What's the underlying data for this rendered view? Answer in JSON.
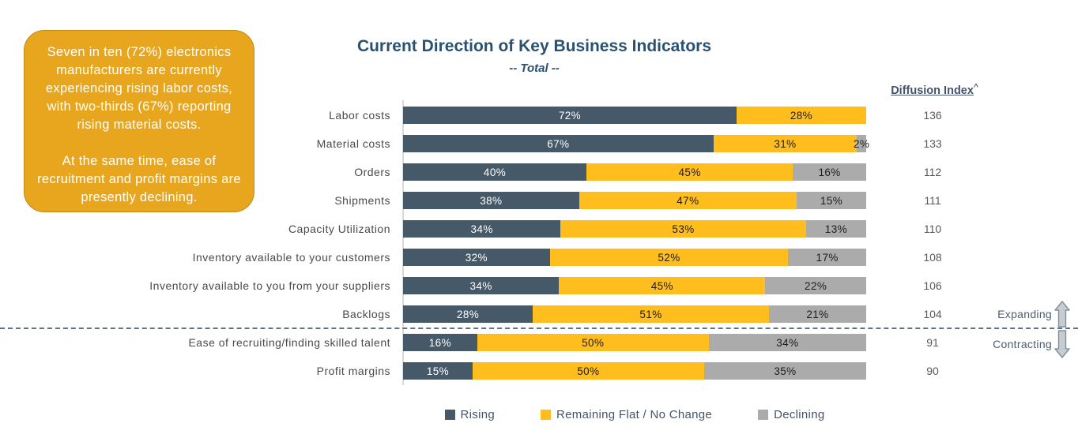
{
  "title": "Current Direction of Key Business Indicators",
  "subtitle": "-- Total --",
  "callout": {
    "paragraph1": "Seven in ten (72%) electronics manufacturers are currently experiencing rising labor costs, with two-thirds (67%) reporting rising material costs.",
    "paragraph2": "At the same time, ease of recruitment and profit margins are presently declining."
  },
  "diffusion_header": {
    "label": "Diffusion Index",
    "superscript": "^"
  },
  "annotations": {
    "expanding": "Expanding",
    "contracting": "Contracting"
  },
  "legend": [
    {
      "label": "Rising",
      "color": "#455969"
    },
    {
      "label": "Remaining Flat / No Change",
      "color": "#FFBE1D"
    },
    {
      "label": "Declining",
      "color": "#ABABAB"
    }
  ],
  "colors": {
    "rising": "#455969",
    "flat": "#FFBE1D",
    "declining": "#ABABAB",
    "title_text": "#2B5171",
    "callout_bg": "#E8A61E",
    "divider": "#5E7284",
    "axis_line": "#D9D9D9"
  },
  "chart_data": {
    "type": "bar",
    "orientation": "horizontal",
    "stacked": true,
    "stacked_100_percent": true,
    "title": "Current Direction of Key Business Indicators",
    "subtitle": "-- Total --",
    "categories": [
      "Labor costs",
      "Material costs",
      "Orders",
      "Shipments",
      "Capacity Utilization",
      "Inventory available to your customers",
      "Inventory available to you from your suppliers",
      "Backlogs",
      "Ease of recruiting/finding skilled talent",
      "Profit margins"
    ],
    "series": [
      {
        "name": "Rising",
        "color": "#455969",
        "label_color": "#FFFFFF",
        "values": [
          72,
          67,
          40,
          38,
          34,
          32,
          34,
          28,
          16,
          15
        ]
      },
      {
        "name": "Remaining Flat / No Change",
        "color": "#FFBE1D",
        "label_color": "#1D1D1D",
        "values": [
          28,
          31,
          45,
          47,
          53,
          52,
          45,
          51,
          50,
          50
        ]
      },
      {
        "name": "Declining",
        "color": "#ABABAB",
        "label_color": "#1D1D1D",
        "values": [
          0,
          2,
          16,
          15,
          13,
          17,
          22,
          21,
          34,
          35
        ]
      }
    ],
    "diffusion_index": [
      136,
      133,
      112,
      111,
      110,
      108,
      106,
      104,
      91,
      90
    ],
    "divider_after_category": "Backlogs",
    "legend_position": "bottom",
    "grid": false
  }
}
